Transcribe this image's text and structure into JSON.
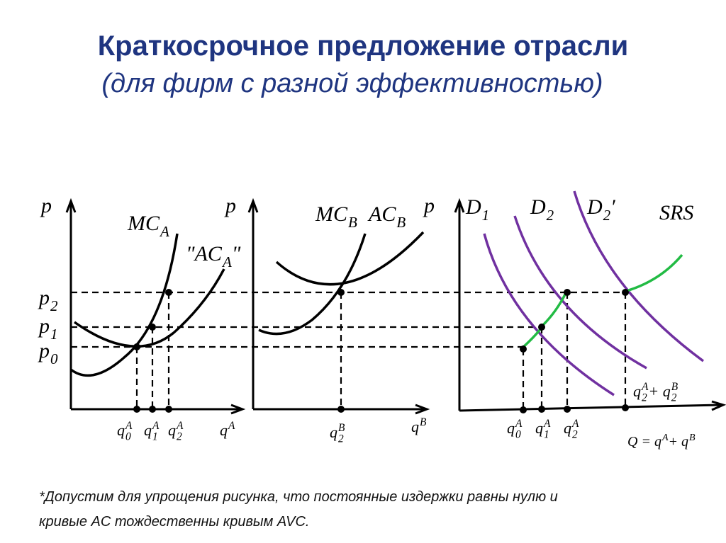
{
  "header": {
    "title": "Краткосрочное предложение отрасли",
    "subtitle": "(для фирм с разной эффективностью)"
  },
  "labels": [
    {
      "parts": [
        {
          "text": "p"
        }
      ]
    },
    {
      "parts": [
        {
          "text": "p"
        }
      ]
    },
    {
      "parts": [
        {
          "text": "p"
        }
      ]
    },
    {
      "parts": [
        {
          "text": "MC",
          "sub": "A"
        }
      ]
    },
    {
      "parts": [
        {
          "text": "\"AC",
          "sub": "A"
        },
        {
          "text": "\""
        }
      ]
    },
    {
      "parts": [
        {
          "text": "p",
          "sub": "2"
        }
      ]
    },
    {
      "parts": [
        {
          "text": "p",
          "sub": "1"
        }
      ]
    },
    {
      "parts": [
        {
          "text": "p",
          "sub": "0"
        }
      ]
    },
    {
      "parts": [
        {
          "text": "q",
          "sub": "0",
          "sup": "A"
        }
      ]
    },
    {
      "parts": [
        {
          "text": "q",
          "sub": "1",
          "sup": "A"
        }
      ]
    },
    {
      "parts": [
        {
          "text": "q",
          "sub": "2",
          "sup": "A"
        }
      ]
    },
    {
      "parts": [
        {
          "text": "q",
          "sup": "A"
        }
      ]
    },
    {
      "parts": [
        {
          "text": "MC",
          "sub": "B"
        }
      ]
    },
    {
      "parts": [
        {
          "text": "AC",
          "sub": "B"
        }
      ]
    },
    {
      "parts": [
        {
          "text": "q",
          "sub": "2",
          "sup": "B"
        }
      ]
    },
    {
      "parts": [
        {
          "text": "q",
          "sup": "B"
        }
      ]
    },
    {
      "parts": [
        {
          "text": "D",
          "sub": "1"
        }
      ]
    },
    {
      "parts": [
        {
          "text": "D",
          "sub": "2"
        }
      ]
    },
    {
      "parts": [
        {
          "text": "D",
          "sub": "2"
        },
        {
          "text": "′"
        }
      ]
    },
    {
      "parts": [
        {
          "text": "SRS"
        }
      ]
    },
    {
      "parts": [
        {
          "text": "q",
          "sub": "0",
          "sup": "A"
        }
      ]
    },
    {
      "parts": [
        {
          "text": "q",
          "sub": "1",
          "sup": "A"
        }
      ]
    },
    {
      "parts": [
        {
          "text": "q",
          "sub": "2",
          "sup": "A"
        }
      ]
    },
    {
      "parts": [
        {
          "text": "q",
          "sub": "2",
          "sup": "A"
        },
        {
          "text": " + q",
          "sub": "2",
          "sup": "B"
        }
      ]
    },
    {
      "parts": [
        {
          "text": "Q = q",
          "sup": "A"
        },
        {
          "text": " + q",
          "sup": "B"
        }
      ]
    }
  ],
  "footnote": {
    "lines": [
      "*Допустим для упрощения рисунка, что постоянные издержки равны нулю и",
      "кривые AC тождественны кривым AVC."
    ]
  }
}
